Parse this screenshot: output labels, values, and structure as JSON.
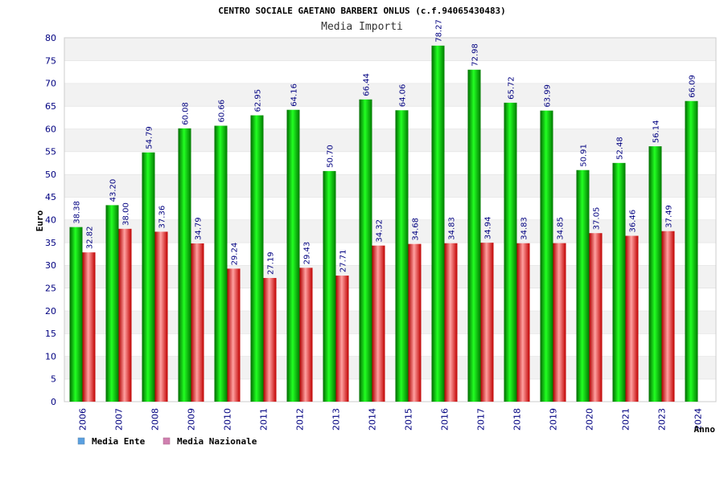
{
  "chart_data": {
    "type": "bar",
    "title": "CENTRO SOCIALE GAETANO BARBERI ONLUS (c.f.94065430483)",
    "subtitle": "Media Importi",
    "ylabel": "Euro",
    "xlabel": "Anno",
    "ylim": [
      0,
      80
    ],
    "ytick_step": 5,
    "grid": true,
    "legend_position": "bottom-left",
    "categories": [
      "2006",
      "2007",
      "2008",
      "2009",
      "2010",
      "2011",
      "2012",
      "2013",
      "2014",
      "2015",
      "2016",
      "2017",
      "2018",
      "2019",
      "2020",
      "2021",
      "2023",
      "2024"
    ],
    "series": [
      {
        "name": "Media Ente",
        "color": "#00b000",
        "legend_color": "#5aa0e0",
        "values": [
          38.38,
          43.2,
          54.79,
          60.08,
          60.66,
          62.95,
          64.16,
          50.7,
          66.44,
          64.06,
          78.27,
          72.98,
          65.72,
          63.99,
          50.91,
          52.48,
          56.14,
          66.09
        ],
        "labels": [
          "38.38",
          "43.20",
          "54.79",
          "60.08",
          "60.66",
          "62.95",
          "64.16",
          "50.70",
          "66.44",
          "64.06",
          "78.27",
          "72.98",
          "65.72",
          "63.99",
          "50.91",
          "52.48",
          "56.14",
          "66.09"
        ]
      },
      {
        "name": "Media Nazionale",
        "color": "#e01010",
        "legend_color": "#d080b0",
        "values": [
          32.82,
          38.0,
          37.36,
          34.79,
          29.24,
          27.19,
          29.43,
          27.71,
          34.32,
          34.68,
          34.83,
          34.94,
          34.83,
          34.85,
          37.05,
          36.46,
          37.49,
          null
        ],
        "labels": [
          "32.82",
          "38.00",
          "37.36",
          "34.79",
          "29.24",
          "27.19",
          "29.43",
          "27.71",
          "34.32",
          "34.68",
          "34.83",
          "34.94",
          "34.83",
          "34.85",
          "37.05",
          "36.46",
          "37.49",
          null
        ]
      }
    ]
  }
}
